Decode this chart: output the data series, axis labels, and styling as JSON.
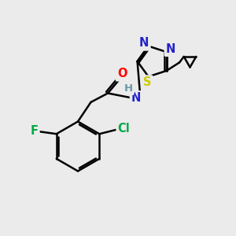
{
  "background_color": "#ebebeb",
  "bond_color": "#000000",
  "bond_width": 1.8,
  "atom_colors": {
    "N": "#2222cc",
    "S": "#cccc00",
    "O": "#ff0000",
    "F": "#00aa44",
    "Cl": "#00aa44",
    "H": "#6699aa",
    "C": "#000000"
  },
  "font_size_atom": 10.5,
  "font_size_small": 8.5,
  "scale": 1.0
}
